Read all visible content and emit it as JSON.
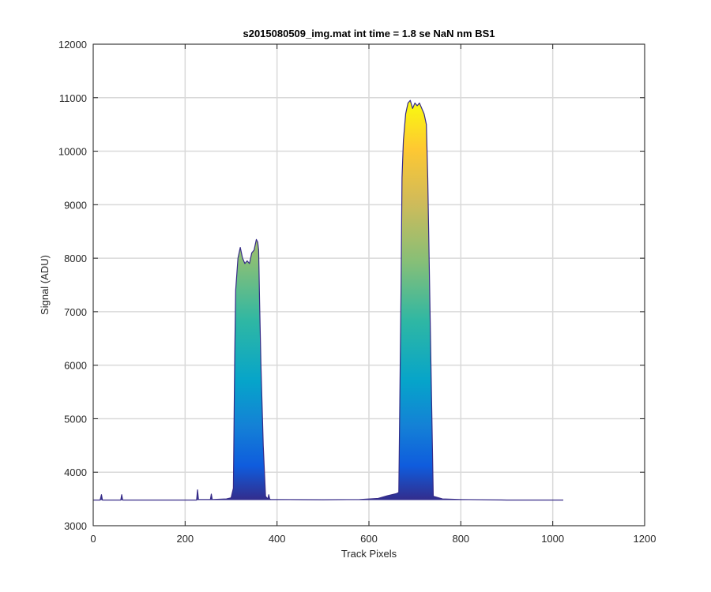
{
  "chart_data": {
    "type": "area",
    "title": "s2015080509_img.mat int time = 1.8 se  NaN nm BS1",
    "xlabel": "Track Pixels",
    "ylabel": "Signal (ADU)",
    "xlim": [
      0,
      1200
    ],
    "ylim": [
      3000,
      12000
    ],
    "x_ticks": [
      "0",
      "200",
      "400",
      "600",
      "800",
      "1000",
      "1200"
    ],
    "y_ticks": [
      "3000",
      "4000",
      "5000",
      "6000",
      "7000",
      "8000",
      "9000",
      "10000",
      "11000",
      "12000"
    ],
    "grid": true,
    "colormap": "parula",
    "colors": {
      "axis": "#262626",
      "grid": "#d9d9d9",
      "baseline_trace": "#352a87",
      "colormap_low": "#352a87",
      "colormap_mid": "#0fb9c9",
      "colormap_high": "#f9fb0e"
    },
    "series": [
      {
        "x": [
          0,
          15,
          18,
          20,
          60,
          62,
          64,
          225,
          227,
          229,
          255,
          257,
          259,
          290,
          300,
          305,
          308,
          310,
          315,
          320,
          325,
          330,
          335,
          340,
          345,
          350,
          355,
          358,
          360,
          362,
          365,
          370,
          375,
          380,
          382,
          384,
          386,
          400,
          500,
          580,
          620,
          640,
          660,
          665,
          670,
          672,
          675,
          680,
          685,
          690,
          695,
          700,
          705,
          710,
          715,
          720,
          725,
          728,
          730,
          735,
          740,
          760,
          800,
          900,
          1000,
          1023
        ],
        "y": [
          3480,
          3480,
          3580,
          3480,
          3480,
          3580,
          3480,
          3480,
          3670,
          3490,
          3490,
          3590,
          3490,
          3500,
          3520,
          3700,
          6200,
          7400,
          8000,
          8200,
          8000,
          7900,
          7950,
          7900,
          8100,
          8150,
          8350,
          8300,
          8150,
          7200,
          6000,
          4500,
          3550,
          3500,
          3580,
          3500,
          3490,
          3490,
          3485,
          3490,
          3510,
          3560,
          3600,
          3620,
          7500,
          9500,
          10200,
          10700,
          10900,
          10950,
          10800,
          10900,
          10850,
          10900,
          10800,
          10700,
          10500,
          9500,
          8500,
          6000,
          3550,
          3500,
          3490,
          3480,
          3480,
          3480
        ]
      }
    ]
  }
}
